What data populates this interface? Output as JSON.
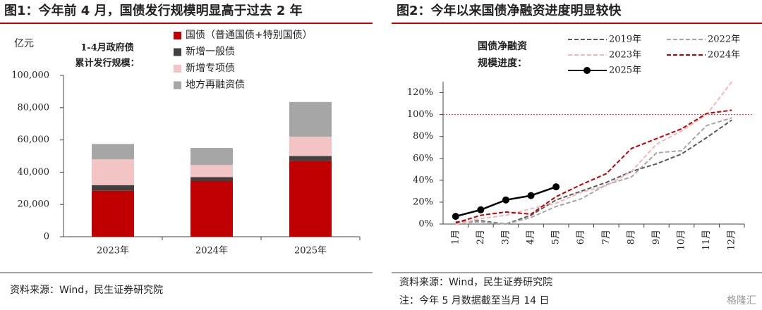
{
  "chart_data": [
    {
      "type": "bar",
      "stacked": true,
      "title": "图1：今年前 4 月，国债发行规模明显高于过去 2 年",
      "y_label": "亿元",
      "annotation": [
        "1-4月政府债",
        "累计发行规模："
      ],
      "categories": [
        "2023年",
        "2024年",
        "2025年"
      ],
      "series": [
        {
          "name": "国债（普通国债+特别国债）",
          "color": "#c00000",
          "values": [
            28500,
            34500,
            47000
          ]
        },
        {
          "name": "新增一般债",
          "color": "#404040",
          "values": [
            3500,
            2500,
            3000
          ]
        },
        {
          "name": "新增专项债",
          "color": "#f2c4c4",
          "values": [
            16000,
            7500,
            12000
          ]
        },
        {
          "name": "地方再融资债",
          "color": "#a6a6a6",
          "values": [
            9500,
            10500,
            21500
          ]
        }
      ],
      "ylim": [
        0,
        100000
      ],
      "yticks": [
        0,
        {
          "value": 20000,
          "label": "20,000"
        },
        {
          "value": 40000,
          "label": "40,000"
        },
        {
          "value": 60000,
          "label": "60,000"
        },
        {
          "value": 80000,
          "label": "80,000"
        },
        {
          "value": 100000,
          "label": "100,000"
        }
      ]
    },
    {
      "type": "line",
      "title": "图2：今年以来国债净融资进度明显较快",
      "annotation": [
        "国债净融资",
        "规模进度："
      ],
      "categories": [
        "1月",
        "2月",
        "3月",
        "4月",
        "5月",
        "6月",
        "7月",
        "8月",
        "9月",
        "10月",
        "11月",
        "12月"
      ],
      "series": [
        {
          "name": "2019年",
          "color": "#595959",
          "dashed": true,
          "values": [
            2,
            3,
            0,
            8,
            22,
            30,
            38,
            48,
            55,
            64,
            79,
            95
          ]
        },
        {
          "name": "2022年",
          "color": "#a6a6a6",
          "dashed": true,
          "values": [
            1,
            2,
            0,
            6,
            16,
            23,
            36,
            43,
            65,
            67,
            90,
            97
          ]
        },
        {
          "name": "2023年",
          "color": "#f4b6b6",
          "dashed": true,
          "values": [
            0,
            5,
            8,
            14,
            19,
            29,
            35,
            48,
            73,
            85,
            100,
            130
          ]
        },
        {
          "name": "2024年",
          "color": "#c00000",
          "dashed": true,
          "values": [
            1,
            8,
            11,
            9,
            25,
            36,
            46,
            69,
            78,
            87,
            101,
            104
          ]
        },
        {
          "name": "2025年",
          "color": "#000000",
          "markers": true,
          "values": [
            7,
            13,
            22,
            26,
            34,
            null,
            null,
            null,
            null,
            null,
            null,
            null
          ]
        }
      ],
      "hline": {
        "value": 100,
        "color": "#e03030"
      },
      "ylim": [
        0,
        130
      ],
      "yticks": [
        {
          "value": 0,
          "label": "0%"
        },
        {
          "value": 20,
          "label": "20%"
        },
        {
          "value": 40,
          "label": "40%"
        },
        {
          "value": 60,
          "label": "60%"
        },
        {
          "value": 80,
          "label": "80%"
        },
        {
          "value": 100,
          "label": "100%"
        },
        {
          "value": 120,
          "label": "120%"
        }
      ]
    }
  ],
  "sources": [
    "资料来源：Wind，民生证券研究院",
    "资料来源：Wind，民生证券研究院"
  ],
  "note": "注：今年 5 月数据截至当月 14 日",
  "watermark": "格隆汇"
}
